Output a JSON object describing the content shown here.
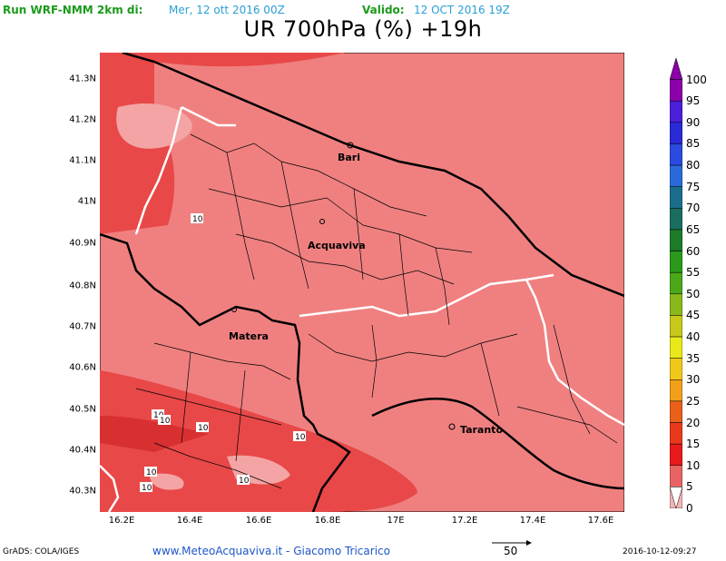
{
  "header": {
    "run_label": "Run WRF-NMM 2km di:",
    "run_date": "Mer, 12 ott 2016 00Z",
    "valid_label": "Valido:",
    "valid_date": "12 OCT 2016 19Z"
  },
  "title": "UR 700hPa (%) +19h",
  "map": {
    "y_ticks": [
      "41.3N",
      "41.2N",
      "41.1N",
      "41N",
      "40.9N",
      "40.8N",
      "40.7N",
      "40.6N",
      "40.5N",
      "40.4N",
      "40.3N"
    ],
    "x_ticks": [
      "16.2E",
      "16.4E",
      "16.6E",
      "16.8E",
      "17E",
      "17.2E",
      "17.4E",
      "17.6E"
    ],
    "cities": [
      "Bari",
      "Acquaviva",
      "Matera",
      "Taranto"
    ],
    "contour_labels": [
      "10",
      "10",
      "10",
      "10",
      "10",
      "10",
      "10",
      "10"
    ],
    "colors": {
      "level_0_5": "#f6b9b9",
      "level_10_15": "#f08080",
      "level_15_20": "#e83c3c",
      "boundary": "#000000",
      "region_border": "#ffffff"
    }
  },
  "colorbar": {
    "levels": [
      "100",
      "95",
      "90",
      "85",
      "80",
      "75",
      "70",
      "65",
      "60",
      "55",
      "50",
      "45",
      "40",
      "35",
      "30",
      "25",
      "20",
      "15",
      "10",
      "5",
      "0"
    ],
    "colors": [
      "#8b00a8",
      "#4b1fd8",
      "#2a2ad8",
      "#2a4ae0",
      "#2a6ad8",
      "#1a6e8c",
      "#1a6e5e",
      "#1c7a28",
      "#2a9a1a",
      "#4aa81a",
      "#8ab81a",
      "#c8c81a",
      "#e8e81a",
      "#f0c81a",
      "#f0a01a",
      "#e8601a",
      "#e83a1a",
      "#e81a1a",
      "#e86464",
      "#f4b4b4"
    ]
  },
  "footer": {
    "grads": "GrADS: COLA/IGES",
    "site": "www.MeteoAcquaviva.it  -  Giacomo Tricarico",
    "scale": "50",
    "stamp": "2016-10-12-09:27"
  }
}
